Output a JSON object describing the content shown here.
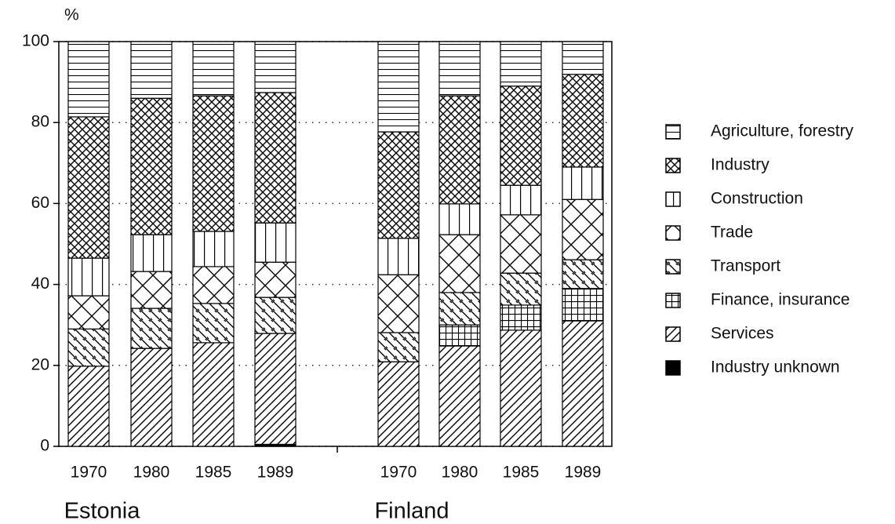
{
  "chart_data": {
    "type": "bar",
    "stacked": true,
    "y_label": "%",
    "groups": [
      {
        "name": "Estonia",
        "categories": [
          "1970",
          "1980",
          "1985",
          "1989"
        ]
      },
      {
        "name": "Finland",
        "categories": [
          "1970",
          "1980",
          "1985",
          "1989"
        ]
      }
    ],
    "ylim": [
      0,
      100
    ],
    "yticks": [
      0,
      20,
      40,
      60,
      80,
      100
    ],
    "grid": true,
    "legend": "right",
    "series": [
      {
        "name": "Industry unknown",
        "color": "#000000",
        "pattern": "solid",
        "values": [
          0,
          0,
          0,
          0.5,
          0,
          0,
          0,
          0
        ]
      },
      {
        "name": "Services",
        "color": "#000000",
        "pattern": "slash",
        "values": [
          19.8,
          24.2,
          25.6,
          27.4,
          20.9,
          24.8,
          28.7,
          31.0
        ]
      },
      {
        "name": "Finance, insurance",
        "color": "#000000",
        "pattern": "grid",
        "values": [
          0,
          0,
          0,
          0,
          0,
          5.2,
          6.2,
          8.0
        ]
      },
      {
        "name": "Transport",
        "color": "#000000",
        "pattern": "backslash",
        "values": [
          9.2,
          9.9,
          9.7,
          8.9,
          7.2,
          8.0,
          7.9,
          7.1
        ]
      },
      {
        "name": "Trade",
        "color": "#000000",
        "pattern": "bigcross",
        "values": [
          8.2,
          9.1,
          9.1,
          8.7,
          14.3,
          14.3,
          14.4,
          14.9
        ]
      },
      {
        "name": "Construction",
        "color": "#000000",
        "pattern": "vertical",
        "values": [
          9.3,
          9.1,
          8.7,
          9.7,
          9.0,
          7.6,
          7.3,
          8.0
        ]
      },
      {
        "name": "Industry",
        "color": "#000000",
        "pattern": "crosshatch",
        "values": [
          34.9,
          33.7,
          33.5,
          32.2,
          26.3,
          26.7,
          24.5,
          22.9
        ]
      },
      {
        "name": "Agriculture, forestry",
        "color": "#000000",
        "pattern": "horizontal",
        "values": [
          18.6,
          14.0,
          13.4,
          12.6,
          22.3,
          13.4,
          11.0,
          8.1
        ]
      }
    ]
  }
}
